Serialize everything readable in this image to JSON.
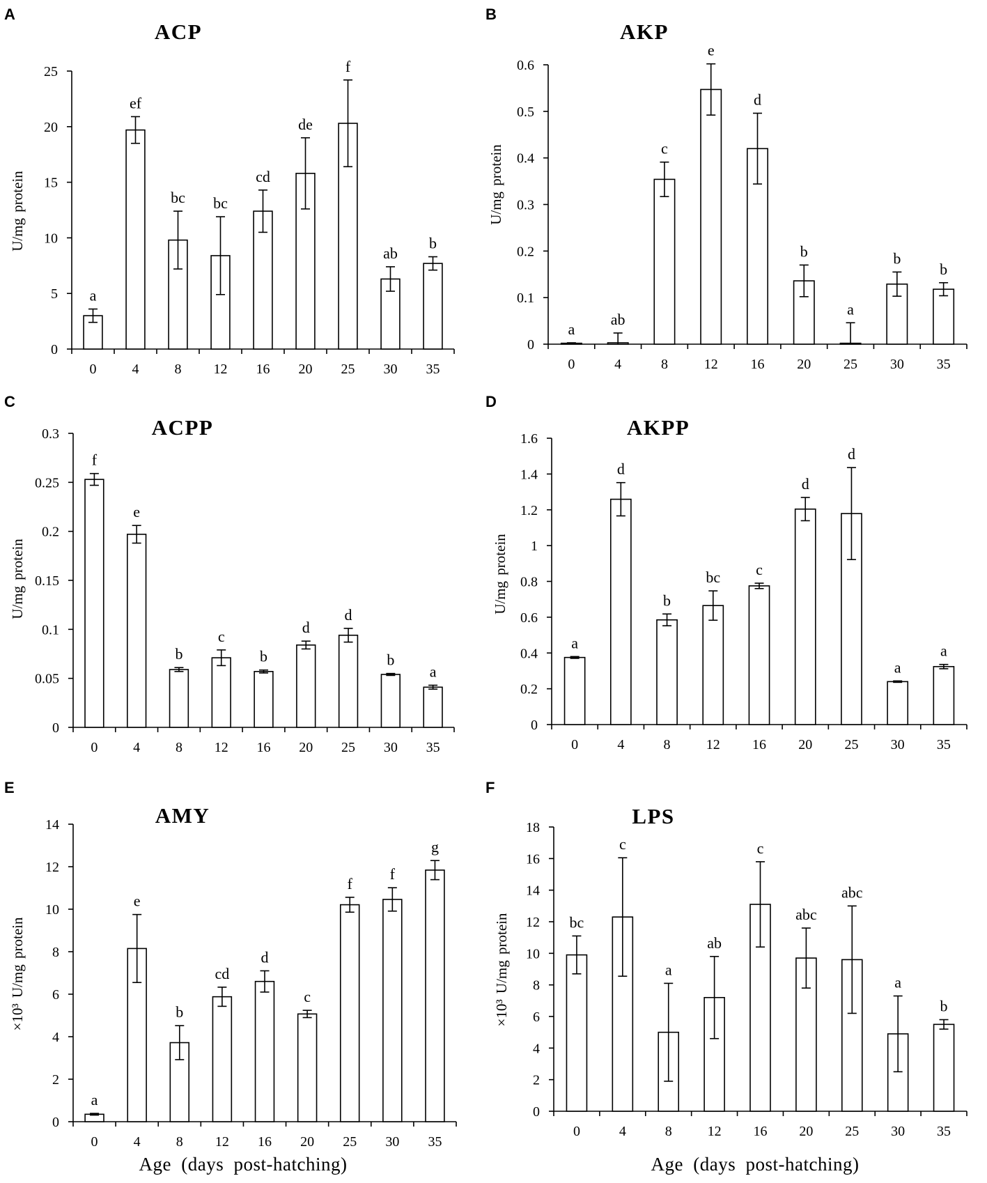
{
  "colors": {
    "ink": "#000000",
    "bar_fill": "#ffffff",
    "background": "#ffffff"
  },
  "chart_data": [
    {
      "panel": "A",
      "type": "bar",
      "title": "ACP",
      "ylabel": "U/mg protein",
      "categories": [
        "0",
        "4",
        "8",
        "12",
        "16",
        "20",
        "25",
        "30",
        "35"
      ],
      "values": [
        3.0,
        19.7,
        9.8,
        8.4,
        12.4,
        15.8,
        20.3,
        6.3,
        7.7
      ],
      "errors": [
        0.6,
        1.2,
        2.6,
        3.5,
        1.9,
        3.2,
        3.9,
        1.1,
        0.6
      ],
      "significance_letters": [
        "a",
        "ef",
        "bc",
        "bc",
        "cd",
        "de",
        "f",
        "ab",
        "b"
      ],
      "ylim": [
        0,
        25
      ],
      "yticks": [
        0,
        5,
        10,
        15,
        20,
        25
      ]
    },
    {
      "panel": "B",
      "type": "bar",
      "title": "AKP",
      "ylabel": "U/mg protein",
      "categories": [
        "0",
        "4",
        "8",
        "12",
        "16",
        "20",
        "25",
        "30",
        "35"
      ],
      "values": [
        0.002,
        0.003,
        0.354,
        0.547,
        0.42,
        0.136,
        0.002,
        0.129,
        0.118
      ],
      "errors": [
        0.001,
        0.021,
        0.037,
        0.055,
        0.076,
        0.034,
        0.044,
        0.026,
        0.014
      ],
      "significance_letters": [
        "a",
        "ab",
        "c",
        "e",
        "d",
        "b",
        "a",
        "b",
        "b"
      ],
      "ylim": [
        0,
        0.6
      ],
      "yticks": [
        0,
        0.1,
        0.2,
        0.3,
        0.4,
        0.5,
        0.6
      ]
    },
    {
      "panel": "C",
      "type": "bar",
      "title": "ACPP",
      "ylabel": "U/mg protein",
      "categories": [
        "0",
        "4",
        "8",
        "12",
        "16",
        "20",
        "25",
        "30",
        "35"
      ],
      "values": [
        0.253,
        0.197,
        0.059,
        0.071,
        0.057,
        0.084,
        0.094,
        0.054,
        0.041
      ],
      "errors": [
        0.006,
        0.009,
        0.002,
        0.008,
        0.0015,
        0.004,
        0.007,
        0.001,
        0.002
      ],
      "significance_letters": [
        "f",
        "e",
        "b",
        "c",
        "b",
        "d",
        "d",
        "b",
        "a"
      ],
      "ylim": [
        0,
        0.3
      ],
      "yticks": [
        0,
        0.05,
        0.1,
        0.15,
        0.2,
        0.25,
        0.3
      ]
    },
    {
      "panel": "D",
      "type": "bar",
      "title": "AKPP",
      "ylabel": "U/mg protein",
      "categories": [
        "0",
        "4",
        "8",
        "12",
        "16",
        "20",
        "25",
        "30",
        "35"
      ],
      "values": [
        0.375,
        1.259,
        0.585,
        0.665,
        0.775,
        1.204,
        1.179,
        0.24,
        0.324
      ],
      "errors": [
        0.005,
        0.093,
        0.033,
        0.082,
        0.015,
        0.065,
        0.257,
        0.004,
        0.012
      ],
      "significance_letters": [
        "a",
        "d",
        "b",
        "bc",
        "c",
        "d",
        "d",
        "a",
        "a"
      ],
      "ylim": [
        0,
        1.6
      ],
      "yticks": [
        0,
        0.2,
        0.4,
        0.6,
        0.8,
        1,
        1.2,
        1.4,
        1.6
      ]
    },
    {
      "panel": "E",
      "type": "bar",
      "title": "AMY",
      "ylabel": "×10³ U/mg protein",
      "xlabel": "Age (days post-hatching)",
      "categories": [
        "0",
        "4",
        "8",
        "12",
        "16",
        "20",
        "25",
        "30",
        "35"
      ],
      "values": [
        0.35,
        8.15,
        3.72,
        5.88,
        6.6,
        5.07,
        10.21,
        10.46,
        11.84
      ],
      "errors": [
        0.04,
        1.6,
        0.8,
        0.45,
        0.5,
        0.17,
        0.35,
        0.55,
        0.45
      ],
      "significance_letters": [
        "a",
        "e",
        "b",
        "cd",
        "d",
        "c",
        "f",
        "f",
        "g"
      ],
      "ylim": [
        0,
        14
      ],
      "yticks": [
        0,
        2,
        4,
        6,
        8,
        10,
        12,
        14
      ]
    },
    {
      "panel": "F",
      "type": "bar",
      "title": "LPS",
      "ylabel": "×10³ U/mg protein",
      "xlabel": "Age (days post-hatching)",
      "categories": [
        "0",
        "4",
        "8",
        "12",
        "16",
        "20",
        "25",
        "30",
        "35"
      ],
      "values": [
        9.9,
        12.3,
        5.0,
        7.2,
        13.1,
        9.7,
        9.6,
        4.9,
        5.5
      ],
      "errors": [
        1.2,
        3.75,
        3.1,
        2.6,
        2.7,
        1.9,
        3.4,
        2.4,
        0.3
      ],
      "significance_letters": [
        "bc",
        "c",
        "a",
        "ab",
        "c",
        "abc",
        "abc",
        "a",
        "b"
      ],
      "ylim": [
        0,
        18
      ],
      "yticks": [
        0,
        2,
        4,
        6,
        8,
        10,
        12,
        14,
        16,
        18
      ]
    }
  ]
}
